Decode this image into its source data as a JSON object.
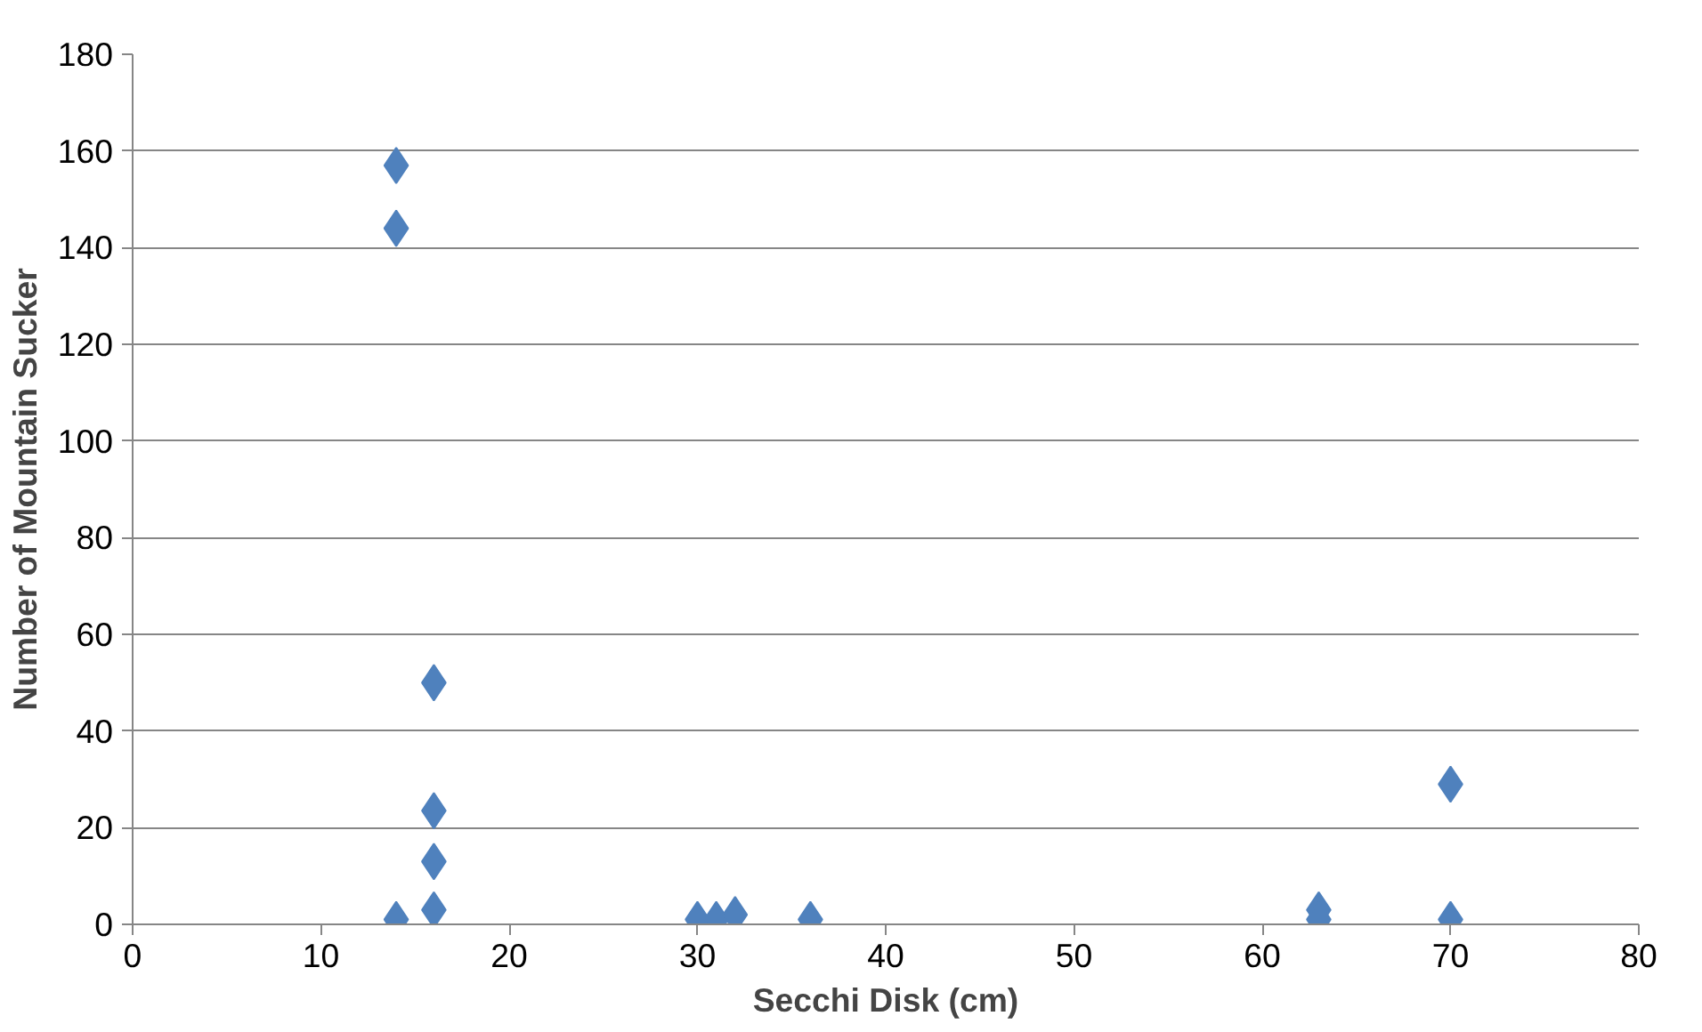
{
  "chart_data": {
    "type": "scatter",
    "xlabel": "Secchi Disk (cm)",
    "ylabel": "Number of Mountain Sucker",
    "x": [
      14,
      14,
      14,
      16,
      16,
      16,
      16,
      30,
      31,
      32,
      36,
      63,
      63,
      70,
      70
    ],
    "series": [
      {
        "color": "#4f81bd",
        "values": [
          157,
          144,
          1,
          50,
          23.5,
          13,
          3,
          1,
          1,
          2,
          1,
          3,
          1,
          29,
          1
        ]
      }
    ],
    "xlim": [
      0,
      80
    ],
    "xticks": [
      0,
      10,
      20,
      30,
      40,
      50,
      60,
      70,
      80
    ],
    "ylim": [
      0,
      180
    ],
    "yticks": [
      0,
      20,
      40,
      60,
      80,
      100,
      120,
      140,
      160,
      180
    ],
    "grid": "y",
    "marker": "diamond"
  }
}
